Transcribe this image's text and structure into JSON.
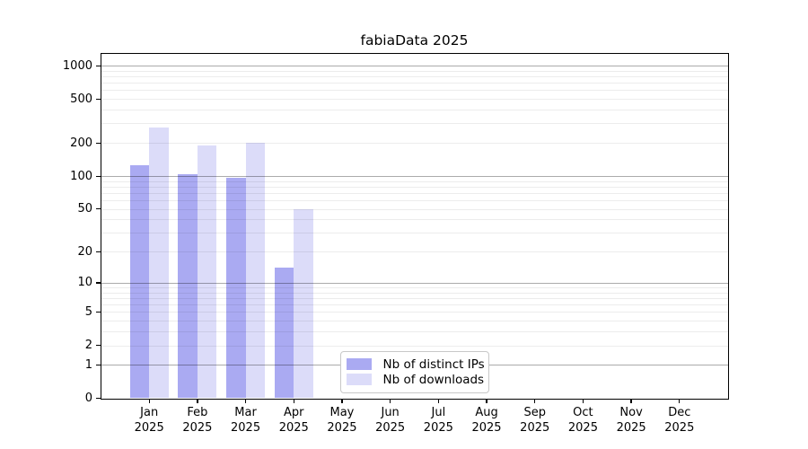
{
  "chart_data": {
    "type": "bar",
    "title": "fabiaData 2025",
    "categories": [
      "Jan 2025",
      "Feb 2025",
      "Mar 2025",
      "Apr 2025",
      "May 2025",
      "Jun 2025",
      "Jul 2025",
      "Aug 2025",
      "Sep 2025",
      "Oct 2025",
      "Nov 2025",
      "Dec 2025"
    ],
    "series": [
      {
        "name": "Nb of distinct IPs",
        "color": "#aaaaf2",
        "values": [
          126,
          104,
          97,
          14,
          0,
          0,
          0,
          0,
          0,
          0,
          0,
          0
        ]
      },
      {
        "name": "Nb of downloads",
        "color": "#dcdcf9",
        "values": [
          277,
          189,
          200,
          50,
          0,
          0,
          0,
          0,
          0,
          0,
          0,
          0
        ]
      }
    ],
    "xlabel": "",
    "ylabel": "",
    "yscale": "symlog (position proportional to log10(1+value))",
    "yticks": [
      0,
      1,
      2,
      5,
      10,
      20,
      50,
      100,
      200,
      500,
      1000
    ],
    "ylim": [
      0,
      1280
    ],
    "grid": {
      "major_values": [
        1,
        10,
        100,
        1000
      ],
      "minor_values": [
        2,
        3,
        4,
        5,
        6,
        7,
        8,
        9,
        20,
        30,
        40,
        50,
        60,
        70,
        80,
        90,
        200,
        300,
        400,
        500,
        600,
        700,
        800,
        900
      ],
      "drawn_over_bars": true
    },
    "legend_position": "bottom-center inside plot",
    "bar_layout": "pairs centered on month tick, IPs bar left of tick, downloads bar right of tick"
  },
  "colors": {
    "background": "#ffffff",
    "axis": "#000000",
    "legend_border": "#c8c8c8",
    "ips_bar": "#aaaaf2",
    "downloads_bar": "#dcdcf9"
  }
}
